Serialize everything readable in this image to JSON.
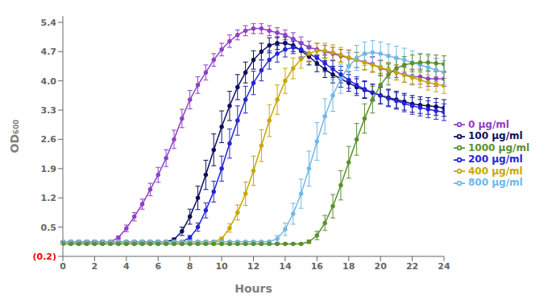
{
  "chart_data": {
    "type": "line",
    "xlabel": "Hours",
    "ylabel": "OD₆₀₀",
    "xlim": [
      0,
      24
    ],
    "ylim": [
      -0.2,
      5.55
    ],
    "xticks": [
      0,
      2,
      4,
      6,
      8,
      10,
      12,
      14,
      16,
      18,
      20,
      22,
      24
    ],
    "yticks": [
      {
        "value": -0.2,
        "label": "(0.2)"
      },
      0.5,
      1.2,
      1.9,
      2.6,
      3.3,
      {
        "value": 4.0,
        "label": "4.0"
      },
      4.7,
      5.4
    ],
    "grid": false,
    "legend": "right",
    "marker": "circle",
    "x": [
      0,
      0.5,
      1,
      1.5,
      2,
      2.5,
      3,
      3.5,
      4,
      4.5,
      5,
      5.5,
      6,
      6.5,
      7,
      7.5,
      8,
      8.5,
      9,
      9.5,
      10,
      10.5,
      11,
      11.5,
      12,
      12.5,
      13,
      13.5,
      14,
      14.5,
      15,
      15.5,
      16,
      16.5,
      17,
      17.5,
      18,
      18.5,
      19,
      19.5,
      20,
      20.5,
      21,
      21.5,
      22,
      22.5,
      23,
      23.5,
      24
    ],
    "series": [
      {
        "name": "0 μg/ml",
        "color": "#9040c8",
        "values": [
          0.15,
          0.15,
          0.15,
          0.15,
          0.15,
          0.15,
          0.15,
          0.25,
          0.47,
          0.75,
          1.05,
          1.4,
          1.75,
          2.15,
          2.6,
          3.1,
          3.55,
          3.9,
          4.2,
          4.5,
          4.75,
          4.95,
          5.1,
          5.2,
          5.25,
          5.25,
          5.2,
          5.15,
          5.1,
          5.0,
          4.9,
          4.8,
          4.75,
          4.7,
          4.65,
          4.6,
          4.55,
          4.5,
          4.45,
          4.4,
          4.3,
          4.25,
          4.2,
          4.15,
          4.1,
          4.1,
          4.05,
          4.05,
          4.05
        ],
        "errors": [
          0.02,
          0.02,
          0.02,
          0.02,
          0.02,
          0.02,
          0.03,
          0.04,
          0.08,
          0.1,
          0.12,
          0.15,
          0.18,
          0.2,
          0.22,
          0.22,
          0.22,
          0.2,
          0.18,
          0.15,
          0.15,
          0.15,
          0.12,
          0.12,
          0.12,
          0.12,
          0.12,
          0.12,
          0.12,
          0.15,
          0.15,
          0.15,
          0.15,
          0.15,
          0.15,
          0.15,
          0.18,
          0.18,
          0.18,
          0.18,
          0.18,
          0.18,
          0.18,
          0.18,
          0.18,
          0.18,
          0.18,
          0.18,
          0.18
        ]
      },
      {
        "name": "100 μg/ml",
        "color": "#0d1060",
        "values": [
          0.15,
          0.15,
          0.15,
          0.15,
          0.15,
          0.15,
          0.15,
          0.15,
          0.15,
          0.15,
          0.15,
          0.15,
          0.15,
          0.15,
          0.2,
          0.4,
          0.75,
          1.2,
          1.75,
          2.35,
          2.9,
          3.4,
          3.85,
          4.2,
          4.5,
          4.7,
          4.85,
          4.9,
          4.9,
          4.85,
          4.72,
          4.58,
          4.42,
          4.28,
          4.15,
          4.05,
          3.95,
          3.85,
          3.78,
          3.72,
          3.65,
          3.6,
          3.55,
          3.5,
          3.45,
          3.42,
          3.4,
          3.38,
          3.35
        ],
        "errors": [
          0.02,
          0.02,
          0.02,
          0.02,
          0.02,
          0.02,
          0.02,
          0.02,
          0.02,
          0.02,
          0.02,
          0.02,
          0.02,
          0.02,
          0.04,
          0.1,
          0.18,
          0.28,
          0.35,
          0.38,
          0.38,
          0.35,
          0.3,
          0.25,
          0.22,
          0.2,
          0.18,
          0.15,
          0.15,
          0.15,
          0.18,
          0.2,
          0.2,
          0.2,
          0.2,
          0.2,
          0.2,
          0.2,
          0.2,
          0.2,
          0.2,
          0.2,
          0.2,
          0.2,
          0.2,
          0.2,
          0.2,
          0.2,
          0.2
        ]
      },
      {
        "name": "200 μg/ml",
        "color": "#2525d8",
        "values": [
          0.15,
          0.15,
          0.15,
          0.15,
          0.15,
          0.15,
          0.15,
          0.15,
          0.15,
          0.15,
          0.15,
          0.15,
          0.15,
          0.15,
          0.15,
          0.15,
          0.25,
          0.5,
          0.9,
          1.35,
          1.9,
          2.5,
          3.05,
          3.55,
          3.95,
          4.25,
          4.5,
          4.65,
          4.75,
          4.8,
          4.75,
          4.65,
          4.55,
          4.42,
          4.28,
          4.15,
          4.02,
          3.9,
          3.8,
          3.72,
          3.65,
          3.58,
          3.52,
          3.46,
          3.4,
          3.36,
          3.32,
          3.28,
          3.25
        ],
        "errors": [
          0.02,
          0.02,
          0.02,
          0.02,
          0.02,
          0.02,
          0.02,
          0.02,
          0.02,
          0.02,
          0.02,
          0.02,
          0.02,
          0.02,
          0.02,
          0.02,
          0.05,
          0.1,
          0.18,
          0.25,
          0.3,
          0.35,
          0.35,
          0.32,
          0.28,
          0.25,
          0.22,
          0.2,
          0.18,
          0.15,
          0.18,
          0.18,
          0.18,
          0.2,
          0.2,
          0.2,
          0.2,
          0.2,
          0.2,
          0.2,
          0.2,
          0.2,
          0.2,
          0.2,
          0.2,
          0.2,
          0.2,
          0.2,
          0.2
        ]
      },
      {
        "name": "400 μg/ml",
        "color": "#c8a800",
        "values": [
          0.15,
          0.15,
          0.15,
          0.15,
          0.15,
          0.15,
          0.15,
          0.15,
          0.15,
          0.15,
          0.15,
          0.15,
          0.15,
          0.15,
          0.15,
          0.15,
          0.15,
          0.15,
          0.15,
          0.15,
          0.22,
          0.48,
          0.85,
          1.3,
          1.85,
          2.45,
          3.05,
          3.55,
          4.0,
          4.3,
          4.52,
          4.65,
          4.72,
          4.72,
          4.68,
          4.62,
          4.56,
          4.5,
          4.44,
          4.38,
          4.32,
          4.26,
          4.2,
          4.14,
          4.08,
          4.02,
          3.96,
          3.92,
          3.88
        ],
        "errors": [
          0.02,
          0.02,
          0.02,
          0.02,
          0.02,
          0.02,
          0.02,
          0.02,
          0.02,
          0.02,
          0.02,
          0.02,
          0.02,
          0.02,
          0.02,
          0.02,
          0.02,
          0.02,
          0.02,
          0.02,
          0.04,
          0.1,
          0.18,
          0.28,
          0.35,
          0.38,
          0.38,
          0.35,
          0.3,
          0.25,
          0.22,
          0.2,
          0.18,
          0.18,
          0.18,
          0.18,
          0.18,
          0.18,
          0.18,
          0.18,
          0.18,
          0.18,
          0.18,
          0.18,
          0.18,
          0.18,
          0.18,
          0.18,
          0.18
        ]
      },
      {
        "name": "800 μg/ml",
        "color": "#70b8e8",
        "values": [
          0.15,
          0.15,
          0.15,
          0.15,
          0.15,
          0.15,
          0.15,
          0.15,
          0.15,
          0.15,
          0.15,
          0.15,
          0.15,
          0.15,
          0.15,
          0.15,
          0.15,
          0.15,
          0.15,
          0.15,
          0.15,
          0.15,
          0.15,
          0.15,
          0.15,
          0.15,
          0.15,
          0.22,
          0.45,
          0.82,
          1.3,
          1.9,
          2.55,
          3.15,
          3.65,
          4.05,
          4.35,
          4.55,
          4.65,
          4.68,
          4.65,
          4.6,
          4.55,
          4.5,
          4.44,
          4.38,
          4.32,
          4.26,
          4.2
        ],
        "errors": [
          0.02,
          0.02,
          0.02,
          0.02,
          0.02,
          0.02,
          0.02,
          0.02,
          0.02,
          0.02,
          0.02,
          0.02,
          0.02,
          0.02,
          0.02,
          0.02,
          0.02,
          0.02,
          0.02,
          0.02,
          0.02,
          0.02,
          0.02,
          0.02,
          0.02,
          0.02,
          0.03,
          0.08,
          0.15,
          0.25,
          0.35,
          0.42,
          0.45,
          0.42,
          0.38,
          0.35,
          0.32,
          0.3,
          0.28,
          0.28,
          0.28,
          0.28,
          0.28,
          0.28,
          0.28,
          0.28,
          0.28,
          0.28,
          0.28
        ]
      },
      {
        "name": "1000 μg/ml",
        "color": "#5a9030",
        "values": [
          0.1,
          0.1,
          0.1,
          0.1,
          0.1,
          0.1,
          0.1,
          0.1,
          0.1,
          0.1,
          0.1,
          0.1,
          0.1,
          0.1,
          0.1,
          0.1,
          0.1,
          0.1,
          0.1,
          0.1,
          0.1,
          0.1,
          0.1,
          0.1,
          0.1,
          0.1,
          0.1,
          0.1,
          0.1,
          0.1,
          0.1,
          0.15,
          0.3,
          0.6,
          1.0,
          1.5,
          2.05,
          2.6,
          3.1,
          3.55,
          3.9,
          4.15,
          4.3,
          4.38,
          4.42,
          4.44,
          4.44,
          4.42,
          4.4
        ],
        "errors": [
          0.02,
          0.02,
          0.02,
          0.02,
          0.02,
          0.02,
          0.02,
          0.02,
          0.02,
          0.02,
          0.02,
          0.02,
          0.02,
          0.02,
          0.02,
          0.02,
          0.02,
          0.02,
          0.02,
          0.02,
          0.02,
          0.02,
          0.02,
          0.02,
          0.02,
          0.02,
          0.02,
          0.02,
          0.02,
          0.02,
          0.02,
          0.04,
          0.1,
          0.18,
          0.28,
          0.35,
          0.38,
          0.38,
          0.35,
          0.32,
          0.28,
          0.25,
          0.22,
          0.2,
          0.2,
          0.2,
          0.2,
          0.2,
          0.2
        ]
      }
    ]
  }
}
